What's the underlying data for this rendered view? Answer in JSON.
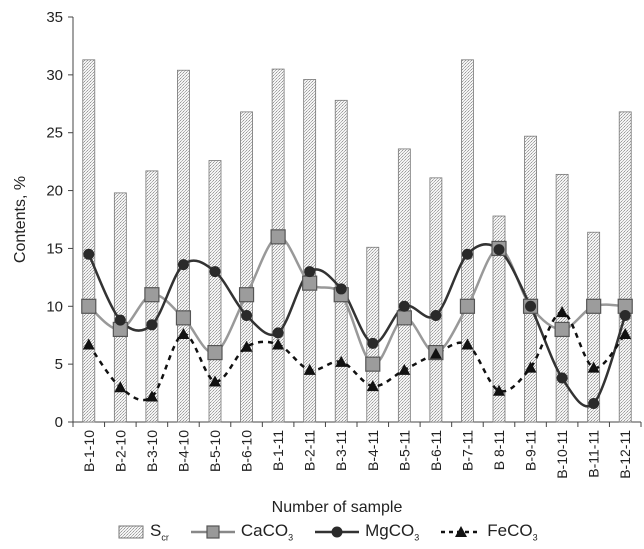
{
  "chart_data": {
    "type": "bar",
    "xlabel": "Number of sample",
    "ylabel": "Contents, %",
    "ylim": [
      0,
      35
    ],
    "yticks": [
      0,
      5,
      10,
      15,
      20,
      25,
      30,
      35
    ],
    "grid": false,
    "legend_position": "bottom",
    "categories": [
      "B-1-10",
      "B-2-10",
      "B-3-10",
      "B-4-10",
      "B-5-10",
      "B-6-10",
      "B-1-11",
      "B-2-11",
      "B-3-11",
      "B-4-11",
      "B-5-11",
      "B-6-11",
      "B-7-11",
      "B 8-11",
      "B-9-11",
      "B-10-11",
      "B-11-11",
      "B-12-11"
    ],
    "series": [
      {
        "name": "S",
        "name_sub": "cr",
        "kind": "bar",
        "values": [
          31.3,
          19.8,
          21.7,
          30.4,
          22.6,
          26.8,
          30.5,
          29.6,
          27.8,
          15.1,
          23.6,
          21.1,
          31.3,
          17.8,
          24.7,
          21.4,
          16.4,
          26.8
        ]
      },
      {
        "name": "CaCO",
        "name_sub": "3",
        "kind": "line-square",
        "color": "#888888",
        "values": [
          10,
          8,
          11,
          9,
          6,
          11,
          16,
          12,
          11,
          5,
          9,
          6,
          10,
          15,
          10,
          8,
          10,
          10
        ]
      },
      {
        "name": "MgCO",
        "name_sub": "3",
        "kind": "line-circle",
        "color": "#333333",
        "values": [
          14.5,
          8.8,
          8.4,
          13.6,
          13,
          9.2,
          7.7,
          13,
          11.5,
          6.8,
          10,
          9.2,
          14.5,
          14.9,
          10,
          3.8,
          1.6,
          9.2
        ]
      },
      {
        "name": "FeCO",
        "name_sub": "3",
        "kind": "dashed-triangle",
        "color": "#111111",
        "values": [
          6.7,
          3,
          2.2,
          7.6,
          3.5,
          6.5,
          6.7,
          4.5,
          5.2,
          3.1,
          4.5,
          5.9,
          6.7,
          2.7,
          4.7,
          9.5,
          4.7,
          7.6
        ]
      }
    ]
  }
}
